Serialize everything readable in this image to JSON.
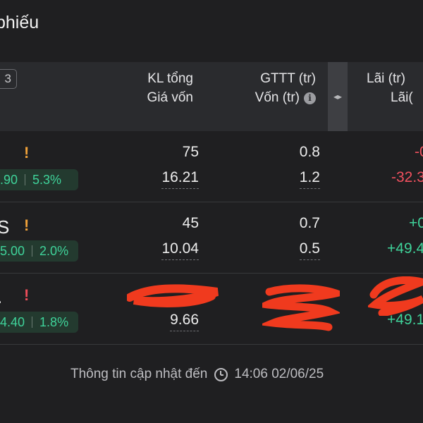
{
  "page": {
    "title": "phiếu"
  },
  "header": {
    "count": "3",
    "col1": {
      "line1": "KL tổng",
      "line2": "Giá vốn"
    },
    "col2": {
      "line1": "GTTT (tr)",
      "line2": "Vốn (tr)"
    },
    "col3": {
      "line1": "Lãi (tr)",
      "line2": "Lãi("
    },
    "scroll_glyph": "◂▸"
  },
  "rows": [
    {
      "ticker_fragment": "",
      "warning": "!",
      "price": ".90",
      "percent": "5.3%",
      "kl_tong": "75",
      "gia_von": "16.21",
      "gttt": "0.8",
      "von": "1.2",
      "lai": "-0",
      "lai_pct": "-32.3"
    },
    {
      "ticker_fragment": "S",
      "warning": "!",
      "price": "5.00",
      "percent": "2.0%",
      "kl_tong": "45",
      "gia_von": "10.04",
      "gttt": "0.7",
      "von": "0.5",
      "lai": "+0",
      "lai_pct": "+49.4"
    },
    {
      "ticker_fragment": ".",
      "warning": "!",
      "price": "4.40",
      "percent": "1.8%",
      "kl_tong": "",
      "gia_von": "9.66",
      "gttt": "",
      "von": "",
      "lai": "",
      "lai_pct": "+49.1"
    }
  ],
  "footer": {
    "text": "Thông tin cập nhật đến",
    "time": "14:06 02/06/25"
  }
}
